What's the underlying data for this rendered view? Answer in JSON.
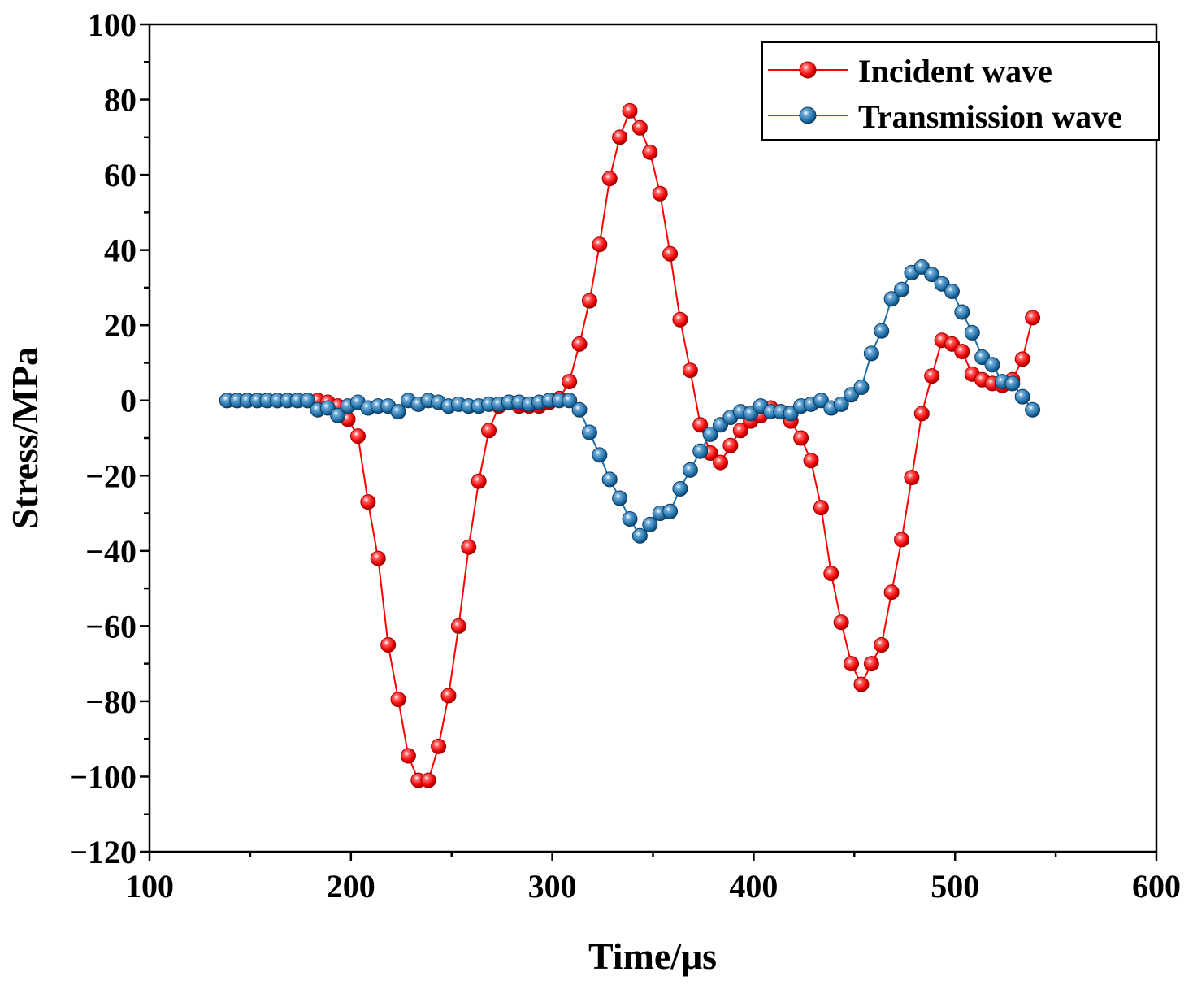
{
  "chart_data": {
    "type": "line",
    "title": "",
    "xlabel": "Time/μs",
    "ylabel": "Stress/MPa",
    "xlim": [
      100,
      600
    ],
    "ylim": [
      -120,
      100
    ],
    "xticks": [
      100,
      200,
      300,
      400,
      500,
      600
    ],
    "yticks": [
      -120,
      -100,
      -80,
      -60,
      -40,
      -20,
      0,
      20,
      40,
      60,
      80,
      100
    ],
    "grid": false,
    "legend_position": "top-right",
    "x_start": 138.5,
    "x_step": 5,
    "series": [
      {
        "name": "Incident wave",
        "color": "#ff0000",
        "values": [
          0,
          0,
          0,
          0,
          0,
          0,
          0,
          0,
          0,
          0,
          -0.5,
          -1.5,
          -5,
          -9.5,
          -27,
          -42,
          -65,
          -79.5,
          -94.5,
          -101,
          -101,
          -92,
          -78.5,
          -60,
          -39,
          -21.5,
          -8,
          -1.5,
          -0.5,
          -1.5,
          -1.5,
          -1.5,
          -0.5,
          0.5,
          5,
          15,
          26.5,
          41.5,
          59,
          70,
          77,
          72.5,
          66,
          55,
          39,
          21.5,
          8,
          -6.5,
          -14,
          -16.5,
          -12,
          -8,
          -5.5,
          -4,
          -2,
          -3,
          -5.5,
          -10,
          -16,
          -28.5,
          -46,
          -59,
          -70,
          -75.5,
          -70,
          -65,
          -51,
          -37,
          -20.5,
          -3.5,
          6.5,
          16,
          15,
          13,
          7,
          5.5,
          4.5,
          4,
          5.5,
          11,
          22
        ]
      },
      {
        "name": "Transmission wave",
        "color": "#1f6fa8",
        "values": [
          0,
          0,
          0,
          0,
          0,
          0,
          0,
          0,
          0,
          -2.5,
          -2,
          -4,
          -1.5,
          -0.5,
          -2,
          -1.5,
          -1.5,
          -3,
          0,
          -1,
          0,
          -0.5,
          -1.5,
          -1,
          -1.5,
          -1.5,
          -1,
          -1,
          -0.5,
          -0.5,
          -1,
          -0.5,
          0,
          0,
          0,
          -2.5,
          -8.5,
          -14.5,
          -21,
          -26,
          -31.5,
          -36,
          -33,
          -30,
          -29.5,
          -23.5,
          -18.5,
          -13.5,
          -9,
          -6.5,
          -4.5,
          -3,
          -3.5,
          -1.5,
          -3,
          -3,
          -3.5,
          -1.5,
          -1,
          0,
          -2,
          -1,
          1.5,
          3.5,
          12.5,
          18.5,
          27,
          29.5,
          34,
          35.5,
          33.5,
          31,
          29,
          23.5,
          18,
          11.5,
          9.5,
          5,
          4.5,
          1,
          -2.5
        ]
      }
    ]
  }
}
